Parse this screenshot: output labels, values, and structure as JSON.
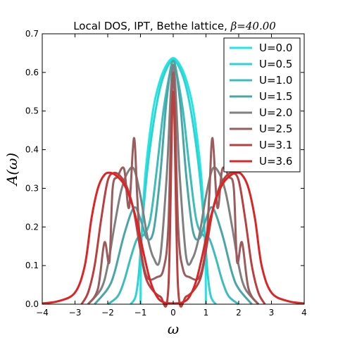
{
  "chart_data": {
    "type": "line",
    "title": "Local DOS, IPT, Bethe lattice, ",
    "title_math": "β=40.00",
    "xlabel": "ω",
    "ylabel": "A(ω)",
    "xlim": [
      -4,
      4
    ],
    "ylim": [
      0,
      0.7
    ],
    "xticks": [
      -4,
      -3,
      -2,
      -1,
      0,
      1,
      2,
      3,
      4
    ],
    "xtick_labels": [
      "−4",
      "−3",
      "−2",
      "−1",
      "0",
      "1",
      "2",
      "3",
      "4"
    ],
    "yticks": [
      0.0,
      0.1,
      0.2,
      0.3,
      0.4,
      0.5,
      0.6,
      0.7
    ],
    "ytick_labels": [
      "0.0",
      "0.1",
      "0.2",
      "0.3",
      "0.4",
      "0.5",
      "0.6",
      "0.7"
    ],
    "grid": false,
    "legend_position": "top-right",
    "series": [
      {
        "name": "U=0.0",
        "color": "#22e6e6",
        "x": [
          -1.0,
          -0.98,
          -0.9,
          -0.8,
          -0.6,
          -0.4,
          -0.2,
          0.0,
          0.2,
          0.4,
          0.6,
          0.8,
          0.9,
          0.98,
          1.0
        ],
        "y": [
          0.0,
          0.13,
          0.28,
          0.38,
          0.51,
          0.58,
          0.62,
          0.637,
          0.62,
          0.58,
          0.51,
          0.38,
          0.28,
          0.13,
          0.0
        ]
      },
      {
        "name": "U=0.5",
        "color": "#2ed2d2",
        "x": [
          -1.3,
          -1.15,
          -1.05,
          -0.95,
          -0.8,
          -0.6,
          -0.4,
          -0.2,
          0.0,
          0.2,
          0.4,
          0.6,
          0.8,
          0.95,
          1.05,
          1.15,
          1.3
        ],
        "y": [
          0.0,
          0.02,
          0.08,
          0.2,
          0.34,
          0.47,
          0.56,
          0.61,
          0.632,
          0.61,
          0.56,
          0.47,
          0.34,
          0.2,
          0.08,
          0.02,
          0.0
        ]
      },
      {
        "name": "U=1.0",
        "color": "#3cbcbc",
        "x": [
          -2.0,
          -1.7,
          -1.5,
          -1.3,
          -1.1,
          -0.9,
          -0.7,
          -0.5,
          -0.3,
          -0.1,
          0.0,
          0.1,
          0.3,
          0.5,
          0.7,
          0.9,
          1.1,
          1.3,
          1.5,
          1.7,
          2.0
        ],
        "y": [
          0.0,
          0.02,
          0.06,
          0.12,
          0.17,
          0.18,
          0.22,
          0.35,
          0.5,
          0.6,
          0.63,
          0.6,
          0.5,
          0.35,
          0.22,
          0.18,
          0.17,
          0.12,
          0.06,
          0.02,
          0.0
        ]
      },
      {
        "name": "U=1.5",
        "color": "#4aa6a6",
        "x": [
          -2.4,
          -2.0,
          -1.8,
          -1.5,
          -1.2,
          -1.0,
          -0.8,
          -0.6,
          -0.4,
          -0.2,
          0.0,
          0.2,
          0.4,
          0.6,
          0.8,
          1.0,
          1.2,
          1.5,
          1.8,
          2.0,
          2.4
        ],
        "y": [
          0.0,
          0.04,
          0.08,
          0.18,
          0.25,
          0.22,
          0.17,
          0.19,
          0.33,
          0.53,
          0.63,
          0.53,
          0.33,
          0.19,
          0.17,
          0.22,
          0.25,
          0.18,
          0.08,
          0.04,
          0.0
        ]
      },
      {
        "name": "U=2.0",
        "color": "#808080",
        "x": [
          -2.6,
          -2.2,
          -2.0,
          -1.8,
          -1.6,
          -1.4,
          -1.2,
          -1.0,
          -0.8,
          -0.6,
          -0.4,
          -0.2,
          0.0,
          0.2,
          0.4,
          0.6,
          0.8,
          1.0,
          1.2,
          1.4,
          1.6,
          1.8,
          2.0,
          2.2,
          2.6
        ],
        "y": [
          0.0,
          0.04,
          0.1,
          0.2,
          0.29,
          0.34,
          0.35,
          0.28,
          0.18,
          0.12,
          0.12,
          0.33,
          0.62,
          0.33,
          0.12,
          0.12,
          0.18,
          0.28,
          0.35,
          0.34,
          0.29,
          0.2,
          0.1,
          0.04,
          0.0
        ]
      },
      {
        "name": "U=2.5",
        "color": "#9a5c5c",
        "x": [
          -2.6,
          -2.3,
          -2.1,
          -1.95,
          -1.85,
          -1.7,
          -1.5,
          -1.35,
          -1.2,
          -1.1,
          -1.0,
          -0.8,
          -0.5,
          -0.3,
          -0.15,
          0.0,
          0.15,
          0.3,
          0.5,
          0.8,
          1.0,
          1.1,
          1.2,
          1.35,
          1.5,
          1.7,
          1.85,
          1.95,
          2.1,
          2.3,
          2.6
        ],
        "y": [
          0.0,
          0.04,
          0.16,
          0.11,
          0.3,
          0.33,
          0.35,
          0.25,
          0.43,
          0.28,
          0.15,
          0.07,
          0.07,
          0.09,
          0.2,
          0.6,
          0.2,
          0.09,
          0.07,
          0.07,
          0.15,
          0.28,
          0.43,
          0.25,
          0.35,
          0.33,
          0.3,
          0.11,
          0.16,
          0.04,
          0.0
        ]
      },
      {
        "name": "U=3.1",
        "color": "#b84040",
        "x": [
          -2.8,
          -2.6,
          -2.4,
          -2.2,
          -2.0,
          -1.8,
          -1.6,
          -1.4,
          -1.2,
          -1.0,
          -0.8,
          -0.4,
          -0.15,
          0.0,
          0.15,
          0.4,
          0.8,
          1.0,
          1.2,
          1.4,
          1.6,
          1.8,
          2.0,
          2.2,
          2.4,
          2.6,
          2.8
        ],
        "y": [
          0.0,
          0.03,
          0.1,
          0.22,
          0.32,
          0.34,
          0.33,
          0.3,
          0.24,
          0.14,
          0.06,
          0.02,
          0.04,
          0.55,
          0.04,
          0.02,
          0.06,
          0.14,
          0.24,
          0.3,
          0.33,
          0.34,
          0.32,
          0.22,
          0.1,
          0.03,
          0.0
        ]
      },
      {
        "name": "U=3.6",
        "color": "#dc2424",
        "x": [
          -4.0,
          -3.5,
          -3.0,
          -2.7,
          -2.5,
          -2.3,
          -2.1,
          -1.9,
          -1.7,
          -1.5,
          -1.3,
          -1.1,
          -0.9,
          -0.7,
          -0.5,
          -0.3,
          0.0,
          0.3,
          0.5,
          0.7,
          0.9,
          1.1,
          1.3,
          1.5,
          1.7,
          1.9,
          2.1,
          2.3,
          2.5,
          2.7,
          3.0,
          3.5,
          4.0
        ],
        "y": [
          0.002,
          0.008,
          0.03,
          0.1,
          0.22,
          0.3,
          0.335,
          0.34,
          0.33,
          0.31,
          0.27,
          0.21,
          0.13,
          0.06,
          0.02,
          0.005,
          0.002,
          0.005,
          0.02,
          0.06,
          0.13,
          0.21,
          0.27,
          0.31,
          0.33,
          0.34,
          0.335,
          0.3,
          0.22,
          0.1,
          0.03,
          0.008,
          0.002
        ]
      }
    ]
  }
}
